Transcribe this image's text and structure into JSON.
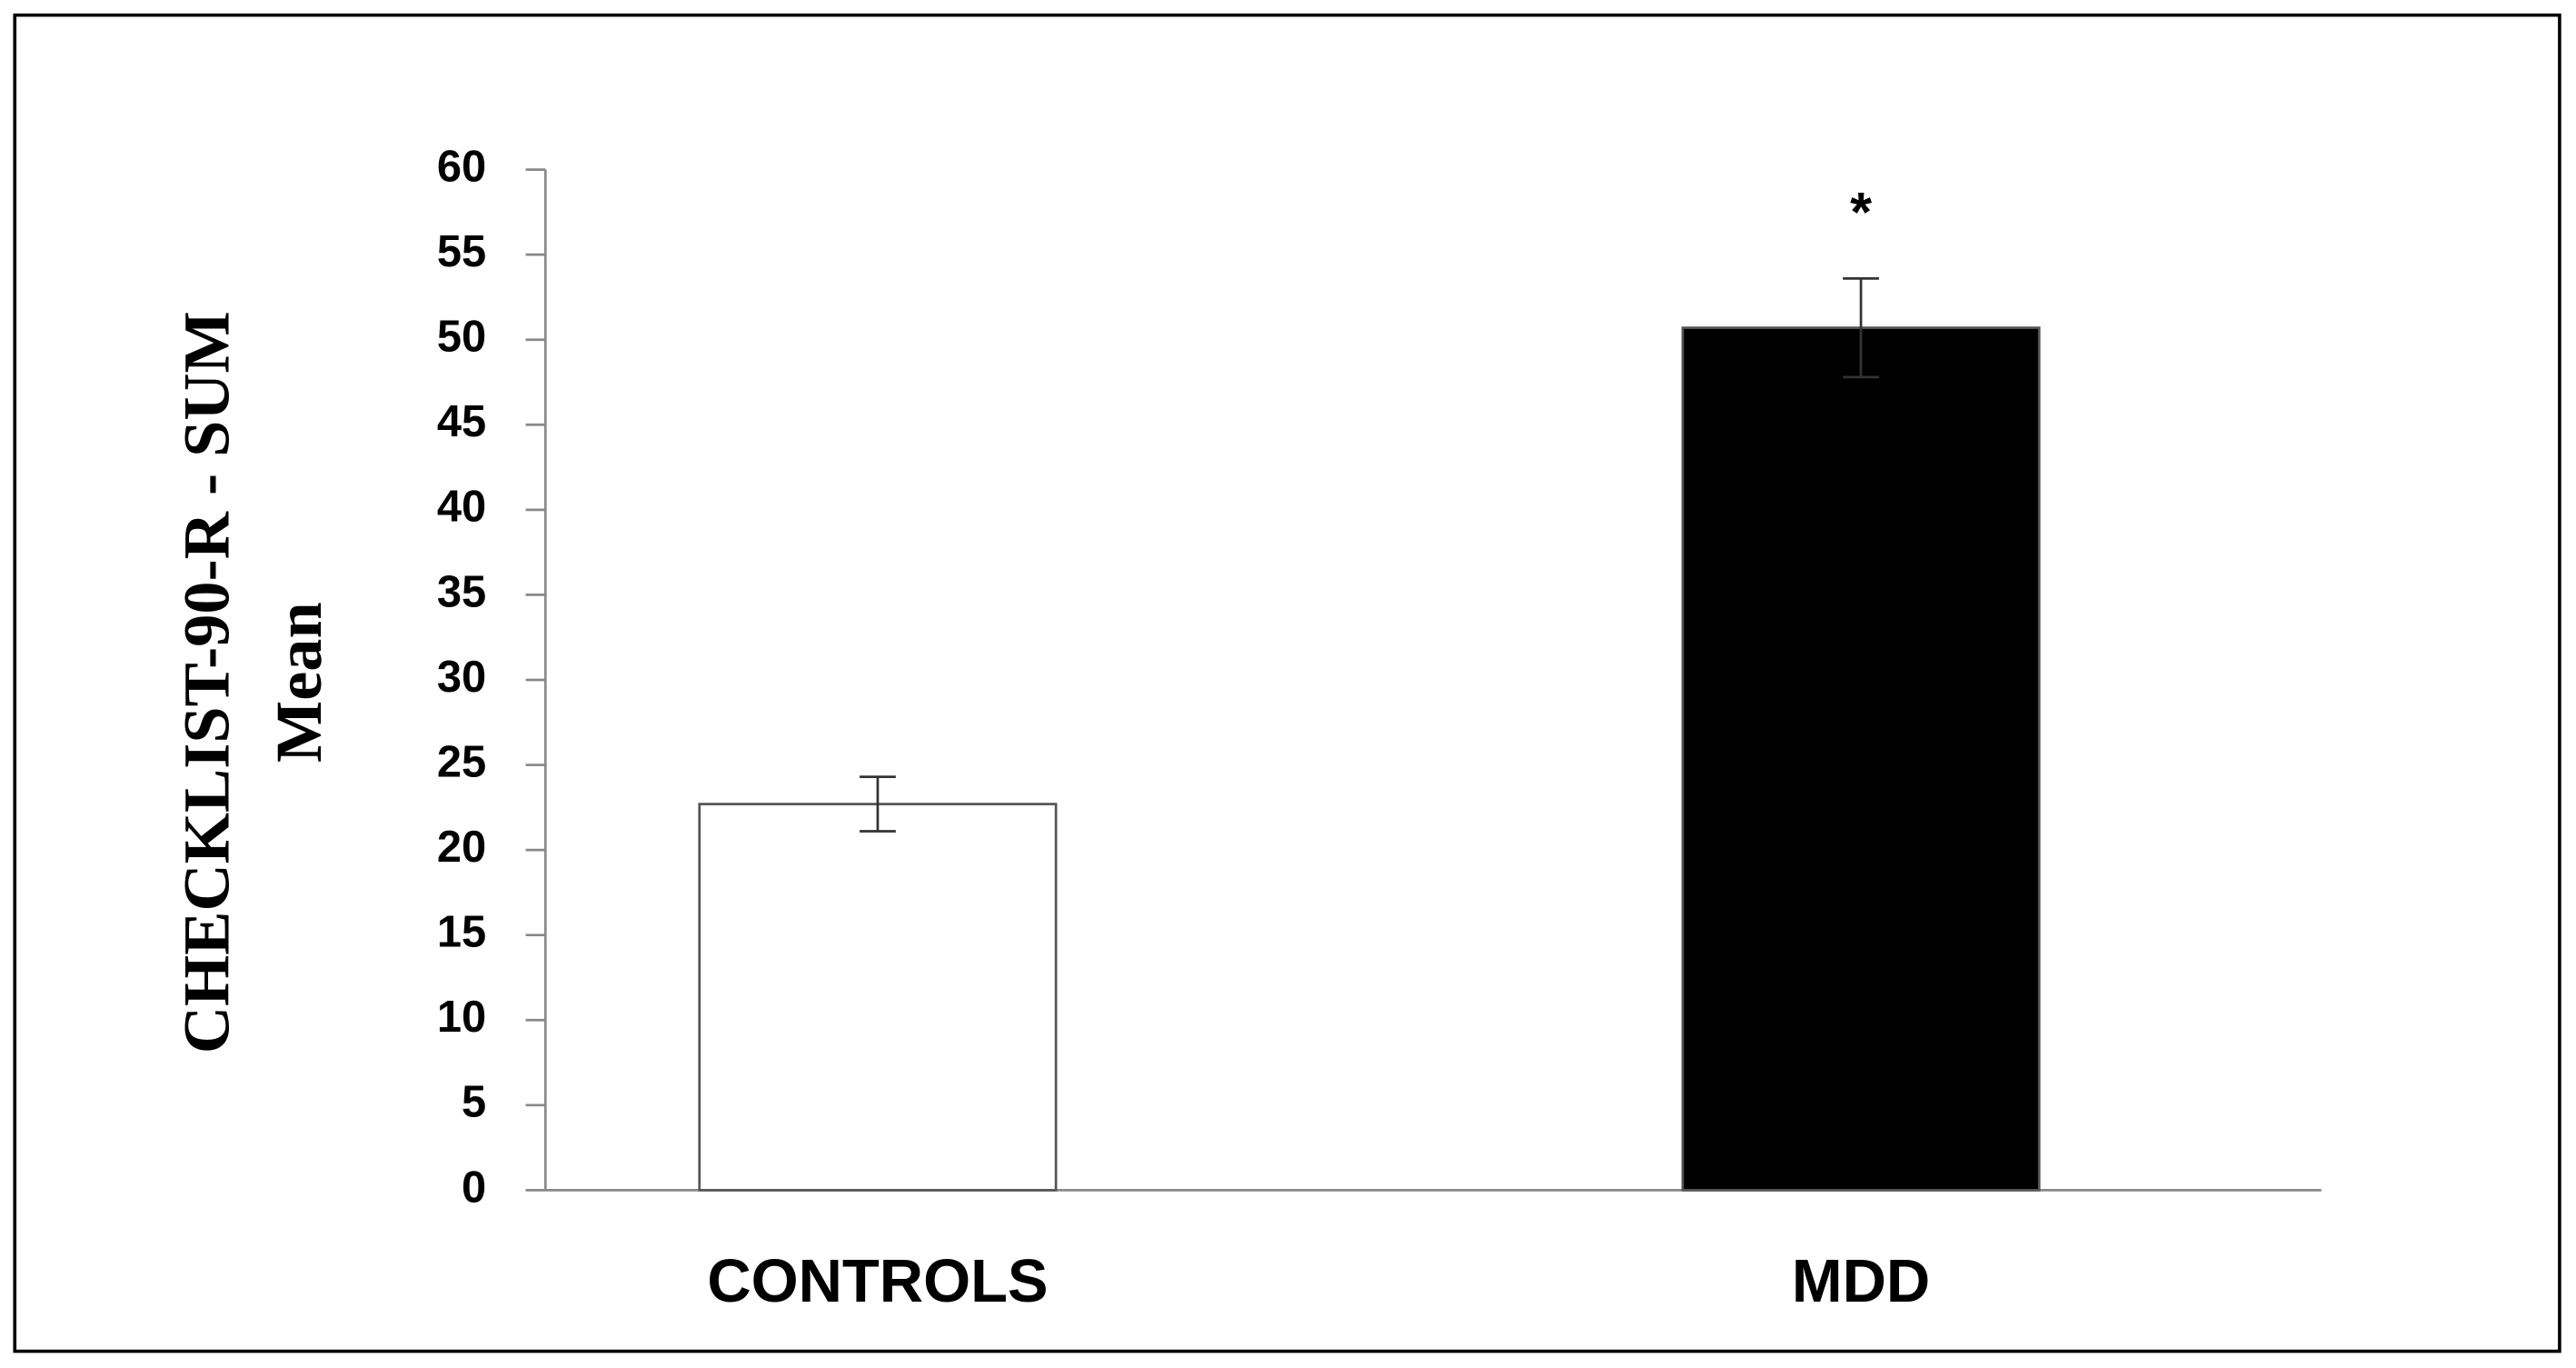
{
  "chart_data": {
    "type": "bar",
    "ylabel": [
      "CHECKLIST-90-R - SUM",
      "Mean"
    ],
    "categories": [
      "CONTROLS",
      "MDD"
    ],
    "values": [
      22.7,
      50.7
    ],
    "errors": [
      1.6,
      2.9
    ],
    "colors": [
      "#ffffff",
      "#000000"
    ],
    "annotation": "*",
    "ylim": [
      0,
      60
    ],
    "yticks": [
      0,
      5,
      10,
      15,
      20,
      25,
      30,
      35,
      40,
      45,
      50,
      55,
      60
    ],
    "grid": false
  }
}
